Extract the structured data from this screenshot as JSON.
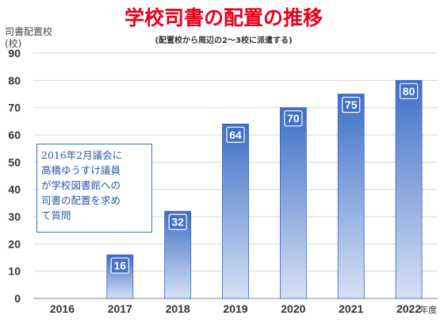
{
  "chart_data": {
    "type": "bar",
    "title": "学校司書の配置の推移",
    "subtitle": "(配置校から周辺の2〜3校に派遣する)",
    "ylabel_line1": "司書配置校",
    "ylabel_line2": "(校)",
    "xlabel": "年度",
    "categories": [
      "2016",
      "2017",
      "2018",
      "2019",
      "2020",
      "2021",
      "2022"
    ],
    "values": [
      0,
      16,
      32,
      64,
      70,
      75,
      80
    ],
    "data_labels": [
      "",
      "16",
      "32",
      "64",
      "70",
      "75",
      "80"
    ],
    "ylim": [
      0,
      90
    ],
    "yticks": [
      0,
      10,
      20,
      30,
      40,
      50,
      60,
      70,
      80,
      90
    ],
    "grid": true,
    "legend": "none",
    "bar_color_top": "#3f6fc7",
    "bar_color_bottom": "#d6e1f4",
    "annotation": "2016年2月議会に\n高橋ゆうすけ議員\nが学校図書館への\n司書の配置を求め\nて質問"
  }
}
